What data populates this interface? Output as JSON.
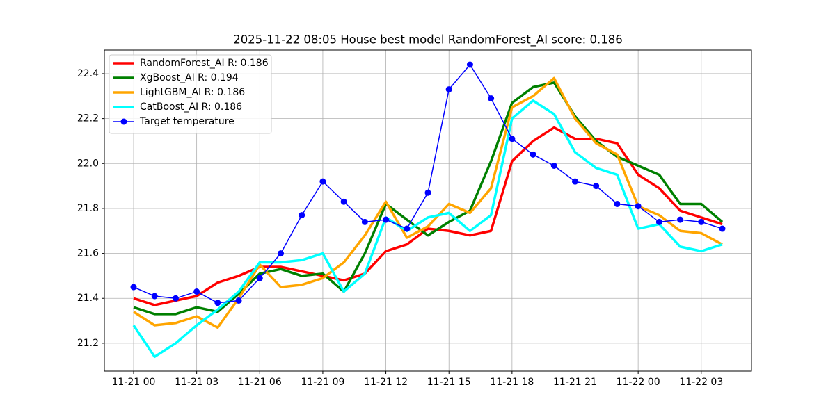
{
  "chart_data": {
    "type": "line",
    "title": "2025-11-22 08:05 House best model RandomForest_AI score: 0.186",
    "x": [
      "11-21 00",
      "11-21 01",
      "11-21 02",
      "11-21 03",
      "11-21 04",
      "11-21 05",
      "11-21 06",
      "11-21 07",
      "11-21 08",
      "11-21 09",
      "11-21 10",
      "11-21 11",
      "11-21 12",
      "11-21 13",
      "11-21 14",
      "11-21 15",
      "11-21 16",
      "11-21 17",
      "11-21 18",
      "11-21 19",
      "11-21 20",
      "11-21 21",
      "11-21 22",
      "11-21 23",
      "11-22 00",
      "11-22 01",
      "11-22 02",
      "11-22 03",
      "11-22 04"
    ],
    "xticks": [
      "11-21 00",
      "11-21 03",
      "11-21 06",
      "11-21 09",
      "11-21 12",
      "11-21 15",
      "11-21 18",
      "11-21 21",
      "11-22 00",
      "11-22 03"
    ],
    "ylim": [
      21.076,
      22.505
    ],
    "yticks": [
      21.2,
      21.4,
      21.6,
      21.8,
      {
        "value": 22,
        "label": "22.0"
      },
      22.2,
      22.4
    ],
    "grid": true,
    "legend": "upper left",
    "series": [
      {
        "name": "RandomForest_AI R: 0.186",
        "color": "#ff0000",
        "values": [
          21.4,
          21.37,
          21.39,
          21.41,
          21.47,
          21.5,
          21.54,
          21.54,
          21.52,
          21.5,
          21.48,
          21.51,
          21.61,
          21.64,
          21.71,
          21.7,
          21.68,
          21.7,
          22.01,
          22.1,
          22.16,
          22.11,
          22.11,
          22.09,
          21.95,
          21.89,
          21.79,
          21.76,
          21.73
        ]
      },
      {
        "name": "XgBoost_AI R: 0.194",
        "color": "#008000",
        "values": [
          21.36,
          21.33,
          21.33,
          21.36,
          21.34,
          21.42,
          21.51,
          21.53,
          21.5,
          21.51,
          21.43,
          21.6,
          21.82,
          21.75,
          21.68,
          21.74,
          21.79,
          22.01,
          22.27,
          22.34,
          22.36,
          22.21,
          22.1,
          22.03,
          21.99,
          21.95,
          21.82,
          21.82,
          21.74
        ]
      },
      {
        "name": "LightGBM_AI R: 0.186",
        "color": "#ffa500",
        "values": [
          21.34,
          21.28,
          21.29,
          21.32,
          21.27,
          21.4,
          21.55,
          21.45,
          21.46,
          21.49,
          21.56,
          21.68,
          21.83,
          21.67,
          21.72,
          21.82,
          21.78,
          21.89,
          22.25,
          22.3,
          22.38,
          22.2,
          22.09,
          22.04,
          21.81,
          21.77,
          21.7,
          21.69,
          21.64
        ]
      },
      {
        "name": "CatBoost_AI R: 0.186",
        "color": "#00ffff",
        "values": [
          21.28,
          21.14,
          21.2,
          21.28,
          21.35,
          21.43,
          21.56,
          21.56,
          21.57,
          21.6,
          21.43,
          21.51,
          21.76,
          21.7,
          21.76,
          21.78,
          21.7,
          21.77,
          22.2,
          22.28,
          22.22,
          22.05,
          21.98,
          21.95,
          21.71,
          21.73,
          21.63,
          21.61,
          21.64
        ]
      },
      {
        "name": "Target temperature",
        "color": "#0000ff",
        "marker": "o",
        "values": [
          21.45,
          21.41,
          21.4,
          21.43,
          21.38,
          21.39,
          21.49,
          21.6,
          21.77,
          21.92,
          21.83,
          21.74,
          21.75,
          21.71,
          21.87,
          22.33,
          22.44,
          22.29,
          22.11,
          22.04,
          21.99,
          21.92,
          21.9,
          21.82,
          21.81,
          21.74,
          21.75,
          21.74,
          21.71
        ]
      }
    ]
  }
}
